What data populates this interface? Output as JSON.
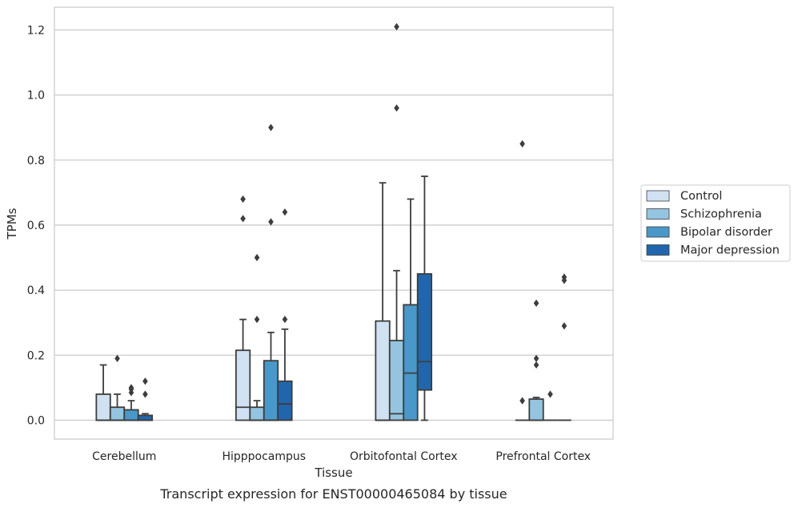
{
  "chart_data": {
    "type": "box",
    "caption": "Transcript expression for ENST00000465084 by tissue",
    "xlabel": "Tissue",
    "ylabel": "TPMs",
    "categories": [
      "Cerebellum",
      "Hipppocampus",
      "Orbitofontal Cortex",
      "Prefrontal Cortex"
    ],
    "ylim": [
      -0.058,
      1.27
    ],
    "yticks": [
      0.0,
      0.2,
      0.4,
      0.6,
      0.8,
      1.0,
      1.2
    ],
    "ytick_labels": [
      "0.0",
      "0.2",
      "0.4",
      "0.6",
      "0.8",
      "1.0",
      "1.2"
    ],
    "grid": "horizontal",
    "legend_position": "right",
    "series": [
      {
        "name": "Control",
        "color": "#d0e1f2",
        "boxes": [
          {
            "category": "Cerebellum",
            "whislo": 0.0,
            "q1": 0.0,
            "med": 0.0,
            "q3": 0.08,
            "whishi": 0.17,
            "fliers": []
          },
          {
            "category": "Hipppocampus",
            "whislo": 0.0,
            "q1": 0.0,
            "med": 0.04,
            "q3": 0.215,
            "whishi": 0.31,
            "fliers": [
              0.62,
              0.68
            ]
          },
          {
            "category": "Orbitofontal Cortex",
            "whislo": 0.0,
            "q1": 0.0,
            "med": 0.0,
            "q3": 0.305,
            "whishi": 0.73,
            "fliers": []
          },
          {
            "category": "Prefrontal Cortex",
            "whislo": 0.0,
            "q1": 0.0,
            "med": 0.0,
            "q3": 0.0,
            "whishi": 0.0,
            "fliers": [
              0.06,
              0.85
            ]
          }
        ]
      },
      {
        "name": "Schizophrenia",
        "color": "#94c4df",
        "boxes": [
          {
            "category": "Cerebellum",
            "whislo": 0.0,
            "q1": 0.0,
            "med": 0.0,
            "q3": 0.04,
            "whishi": 0.08,
            "fliers": [
              0.19
            ]
          },
          {
            "category": "Hipppocampus",
            "whislo": 0.0,
            "q1": 0.0,
            "med": 0.0,
            "q3": 0.04,
            "whishi": 0.06,
            "fliers": [
              0.31,
              0.5
            ]
          },
          {
            "category": "Orbitofontal Cortex",
            "whislo": 0.0,
            "q1": 0.0,
            "med": 0.02,
            "q3": 0.245,
            "whishi": 0.46,
            "fliers": [
              0.96,
              1.21
            ]
          },
          {
            "category": "Prefrontal Cortex",
            "whislo": 0.0,
            "q1": 0.0,
            "med": 0.0,
            "q3": 0.065,
            "whishi": 0.07,
            "fliers": [
              0.17,
              0.19,
              0.36
            ]
          }
        ]
      },
      {
        "name": "Bipolar disorder",
        "color": "#4a98c9",
        "boxes": [
          {
            "category": "Cerebellum",
            "whislo": 0.0,
            "q1": 0.0,
            "med": 0.0,
            "q3": 0.032,
            "whishi": 0.06,
            "fliers": [
              0.085,
              0.095,
              0.1
            ]
          },
          {
            "category": "Hipppocampus",
            "whislo": 0.0,
            "q1": 0.0,
            "med": 0.0,
            "q3": 0.183,
            "whishi": 0.27,
            "fliers": [
              0.61,
              0.9
            ]
          },
          {
            "category": "Orbitofontal Cortex",
            "whislo": 0.0,
            "q1": 0.0,
            "med": 0.145,
            "q3": 0.355,
            "whishi": 0.68,
            "fliers": []
          },
          {
            "category": "Prefrontal Cortex",
            "whislo": 0.0,
            "q1": 0.0,
            "med": 0.0,
            "q3": 0.0,
            "whishi": 0.0,
            "fliers": [
              0.08
            ]
          }
        ]
      },
      {
        "name": "Major depression",
        "color": "#2166ac",
        "boxes": [
          {
            "category": "Cerebellum",
            "whislo": 0.0,
            "q1": 0.0,
            "med": 0.0,
            "q3": 0.015,
            "whishi": 0.02,
            "fliers": [
              0.08,
              0.12
            ]
          },
          {
            "category": "Hipppocampus",
            "whislo": 0.0,
            "q1": 0.0,
            "med": 0.05,
            "q3": 0.12,
            "whishi": 0.28,
            "fliers": [
              0.31,
              0.64
            ]
          },
          {
            "category": "Orbitofontal Cortex",
            "whislo": 0.0,
            "q1": 0.093,
            "med": 0.18,
            "q3": 0.45,
            "whishi": 0.75,
            "fliers": []
          },
          {
            "category": "Prefrontal Cortex",
            "whislo": 0.0,
            "q1": 0.0,
            "med": 0.0,
            "q3": 0.0,
            "whishi": 0.0,
            "fliers": [
              0.29,
              0.43,
              0.44
            ]
          }
        ]
      }
    ]
  }
}
